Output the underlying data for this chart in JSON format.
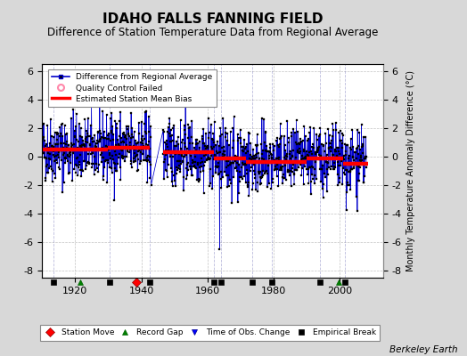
{
  "title": "IDAHO FALLS FANNING FIELD",
  "subtitle": "Difference of Station Temperature Data from Regional Average",
  "ylabel": "Monthly Temperature Anomaly Difference (°C)",
  "credit": "Berkeley Earth",
  "xlim": [
    1910,
    2013
  ],
  "ylim_main": [
    -8.5,
    6.5
  ],
  "yticks": [
    -8,
    -6,
    -4,
    -2,
    0,
    2,
    4,
    6
  ],
  "xticks": [
    1920,
    1940,
    1960,
    1980,
    2000
  ],
  "bg_color": "#d8d8d8",
  "plot_bg_color": "#ffffff",
  "line_color": "#0000cc",
  "marker_color": "#000000",
  "bias_color": "#ff0000",
  "grid_color": "#aaaaaa",
  "seed": 42,
  "x_start": 1910.0,
  "x_end": 2008.0,
  "gaps": [
    [
      1943.0,
      1946.5
    ]
  ],
  "bias_segments": [
    {
      "x_start": 1910.0,
      "x_end": 1930.0,
      "bias": 0.5
    },
    {
      "x_start": 1930.0,
      "x_end": 1942.5,
      "bias": 0.65
    },
    {
      "x_start": 1946.5,
      "x_end": 1962.0,
      "bias": 0.3
    },
    {
      "x_start": 1962.0,
      "x_end": 1971.5,
      "bias": -0.15
    },
    {
      "x_start": 1971.5,
      "x_end": 1990.0,
      "bias": -0.35
    },
    {
      "x_start": 1990.0,
      "x_end": 2001.0,
      "bias": -0.1
    },
    {
      "x_start": 2001.0,
      "x_end": 2008.5,
      "bias": -0.5
    }
  ],
  "station_moves": [
    1938.5
  ],
  "record_gaps": [
    1921.5,
    1999.5
  ],
  "time_obs_changes": [],
  "empirical_breaks": [
    1913.5,
    1930.5,
    1942.5,
    1962.0,
    1964.0,
    1973.5,
    1979.5,
    1994.0,
    2001.5
  ],
  "marker_y": -8.8,
  "title_fontsize": 11,
  "subtitle_fontsize": 8.5,
  "label_fontsize": 7,
  "tick_fontsize": 8
}
